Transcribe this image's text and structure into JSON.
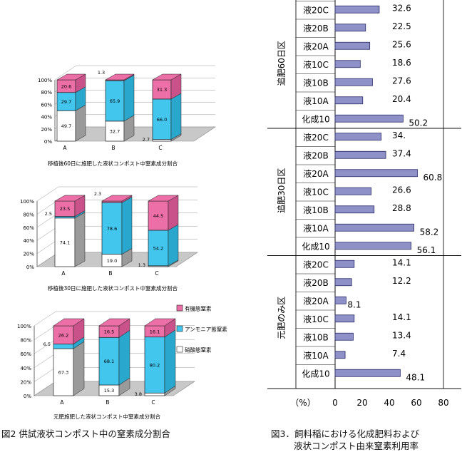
{
  "colors": {
    "organic": "#ec6fa8",
    "ammonium": "#42c6ee",
    "nitrate": "#ffffff",
    "side": "#9a9a9a",
    "floor": "#c8c8c8",
    "bar_hbar": "#8e90c8",
    "bar_hbar_edge": "#2a2a6a"
  },
  "left_figure": {
    "caption": "図2  供試液状コンポスト中の窒素成分割合",
    "legend": {
      "organic": "有機態窒素",
      "ammonium": "アンモニア態窒素",
      "nitrate": "硝酸態窒素"
    },
    "y_ticks": [
      "0%",
      "20%",
      "40%",
      "60%",
      "80%",
      "100%"
    ]
  },
  "right_figure": {
    "caption_line1": "図3．飼料稲における化成肥料および",
    "caption_line2": "液状コンポスト由来窒素利用率",
    "unit_label": "（%）",
    "x_ticks": [
      "0",
      "20",
      "40",
      "60",
      "80"
    ],
    "group_labels": [
      "追肥60日区",
      "追肥30日区",
      "元肥のみ区"
    ]
  },
  "chart_data": [
    {
      "type": "bar",
      "stacked": true,
      "title": "移植後60日に施肥した液状コンポスト中窒素成分割合",
      "categories": [
        "A",
        "B",
        "C"
      ],
      "ylim": [
        0,
        100
      ],
      "series": [
        {
          "name": "硝酸態窒素",
          "values": [
            49.7,
            32.7,
            2.7
          ],
          "labels": [
            "49.7",
            "32.7",
            "2.7"
          ]
        },
        {
          "name": "アンモニア態窒素",
          "values": [
            29.7,
            65.9,
            66.0
          ],
          "labels": [
            "29.7",
            "65.9",
            "66.0"
          ]
        },
        {
          "name": "有機態窒素",
          "values": [
            20.6,
            1.3,
            31.3
          ],
          "labels": [
            "20.6",
            "1.3",
            "31.3"
          ]
        }
      ]
    },
    {
      "type": "bar",
      "stacked": true,
      "title": "移植後30日に施肥した液状コンポスト中窒素成分割合",
      "categories": [
        "A",
        "B",
        "C"
      ],
      "ylim": [
        0,
        100
      ],
      "series": [
        {
          "name": "硝酸態窒素",
          "values": [
            74.1,
            19.0,
            1.3
          ],
          "labels": [
            "74.1",
            "19.0",
            "1.3"
          ]
        },
        {
          "name": "アンモニア態窒素",
          "values": [
            2.5,
            78.6,
            54.2
          ],
          "labels": [
            "2.5",
            "78.6",
            "54.2"
          ]
        },
        {
          "name": "有機態窒素",
          "values": [
            23.5,
            2.3,
            44.5
          ],
          "labels": [
            "23.5",
            "2.3",
            "44.5"
          ]
        }
      ]
    },
    {
      "type": "bar",
      "stacked": true,
      "title": "元肥施肥した液状コンポスト中窒素成分割合",
      "categories": [
        "A",
        "B",
        "C"
      ],
      "ylim": [
        0,
        100
      ],
      "series": [
        {
          "name": "硝酸態窒素",
          "values": [
            67.3,
            15.3,
            3.8
          ],
          "labels": [
            "67.3",
            "15.3",
            "3.8"
          ]
        },
        {
          "name": "アンモニア態窒素",
          "values": [
            6.5,
            68.1,
            80.2
          ],
          "labels": [
            "6.5",
            "68.1",
            "80.2"
          ]
        },
        {
          "name": "有機態窒素",
          "values": [
            26.2,
            16.5,
            16.1
          ],
          "labels": [
            "26.2",
            "16.5",
            "16.1"
          ]
        }
      ]
    },
    {
      "type": "bar",
      "orientation": "horizontal",
      "xlabel": "（%）",
      "xlim": [
        0,
        80
      ],
      "categories": [
        "液20C",
        "液20B",
        "液20A",
        "液10C",
        "液10B",
        "液10A",
        "化成10",
        "液20C",
        "液20B",
        "液20A",
        "液10C",
        "液10B",
        "液10A",
        "化成10",
        "液20C",
        "液20B",
        "液20A",
        "液10C",
        "液10B",
        "液10A",
        "化成10"
      ],
      "groups": [
        "追肥60日区",
        "追肥60日区",
        "追肥60日区",
        "追肥60日区",
        "追肥60日区",
        "追肥60日区",
        "追肥60日区",
        "追肥30日区",
        "追肥30日区",
        "追肥30日区",
        "追肥30日区",
        "追肥30日区",
        "追肥30日区",
        "追肥30日区",
        "元肥のみ区",
        "元肥のみ区",
        "元肥のみ区",
        "元肥のみ区",
        "元肥のみ区",
        "元肥のみ区",
        "元肥のみ区"
      ],
      "values": [
        32.6,
        22.5,
        25.6,
        18.6,
        27.6,
        20.4,
        50.2,
        34.0,
        37.4,
        60.8,
        26.6,
        28.8,
        58.2,
        56.1,
        14.1,
        12.2,
        8.1,
        14.1,
        13.4,
        7.4,
        48.1
      ],
      "labels": [
        "32.6",
        "22.5",
        "25.6",
        "18.6",
        "27.6",
        "20.4",
        "50.2",
        "34.",
        "37.4",
        "60.8",
        "26.6",
        "28.8",
        "58.2",
        "56.1",
        "14.1",
        "12.2",
        "8.1",
        "14.1",
        "13.4",
        "7.4",
        "48.1"
      ]
    }
  ]
}
